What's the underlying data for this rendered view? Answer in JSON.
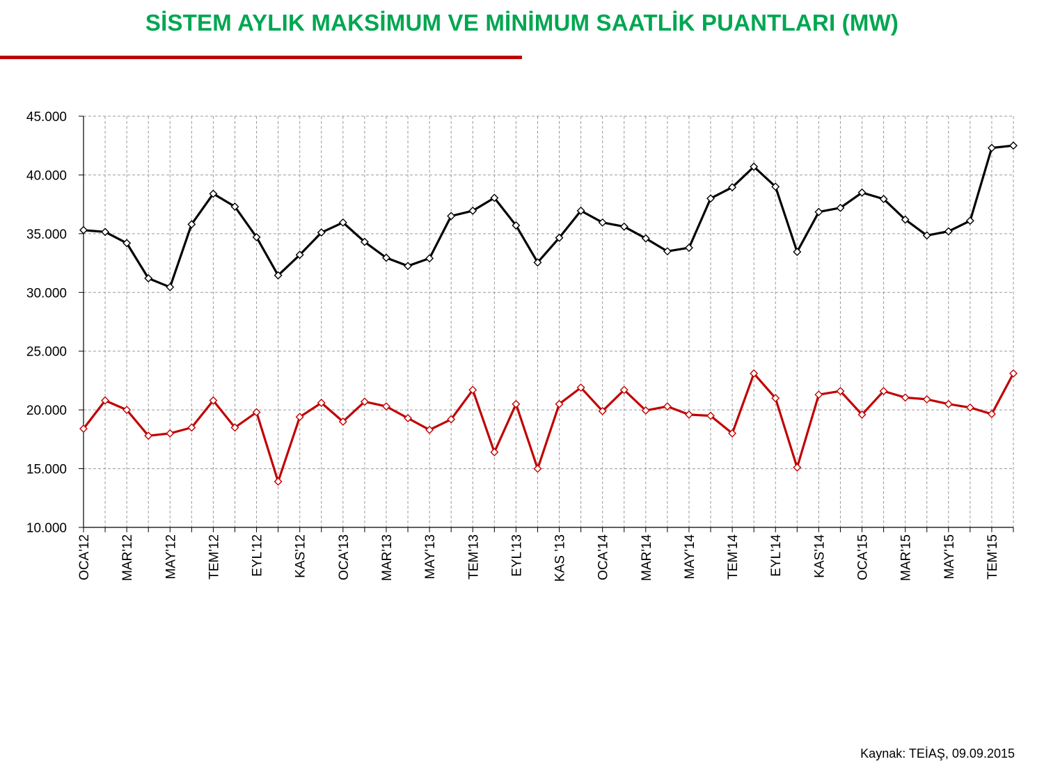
{
  "title": "SİSTEM AYLIK MAKSİMUM VE MİNİMUM SAATLİK PUANTLARI (MW)",
  "source": "Kaynak: TEİAŞ, 09.09.2015",
  "colors": {
    "title": "#00a651",
    "title_rule": "#c00000",
    "max_series": "#000000",
    "min_series": "#c00000",
    "grid": "#9a9a9a"
  },
  "chart_data": {
    "type": "line",
    "title": "SİSTEM AYLIK MAKSİMUM VE MİNİMUM SAATLİK PUANTLARI (MW)",
    "ylim": [
      10000,
      45000
    ],
    "yticks": [
      10000,
      15000,
      20000,
      25000,
      30000,
      35000,
      40000,
      45000
    ],
    "ytick_labels": [
      "10.000",
      "15.000",
      "20.000",
      "25.000",
      "30.000",
      "35.000",
      "40.000",
      "45.000"
    ],
    "grid": true,
    "marker": "diamond",
    "x_labels": [
      "OCA'12",
      "MAR'12",
      "MAY'12",
      "TEM'12",
      "EYL'12",
      "KAS'12",
      "OCA'13",
      "MAR'13",
      "MAY'13",
      "TEM'13",
      "EYL'13",
      "KAS '13",
      "OCA'14",
      "MAR'14",
      "MAY'14",
      "TEM'14",
      "EYL'14",
      "KAS'14",
      "OCA'15",
      "MAR'15",
      "MAY'15",
      "TEM'15"
    ],
    "series": [
      {
        "values": [
          35300,
          35150,
          34200,
          31200,
          30450,
          35800,
          38400,
          37300,
          34700,
          31450,
          33200,
          35100,
          35950,
          34300,
          32950,
          32250,
          32900,
          36500,
          36950,
          38050,
          35700,
          32550,
          34650,
          36950,
          35950,
          35600,
          34600,
          33500,
          33800,
          38000,
          38950,
          40700,
          39000,
          33450,
          36850,
          37200,
          38500,
          37950,
          36200,
          34850,
          35200,
          36100,
          42300,
          42500
        ]
      },
      {
        "values": [
          18400,
          20800,
          20000,
          17800,
          18000,
          18500,
          20800,
          18500,
          19800,
          13900,
          19400,
          20600,
          19000,
          20700,
          20300,
          19300,
          18300,
          19200,
          21700,
          16400,
          20500,
          15000,
          20500,
          21900,
          19900,
          21700,
          19950,
          20300,
          19600,
          19500,
          18000,
          23100,
          21000,
          15100,
          21300,
          21600,
          19600,
          21600,
          21050,
          20900,
          20500,
          20200,
          19650,
          23100
        ]
      }
    ]
  }
}
